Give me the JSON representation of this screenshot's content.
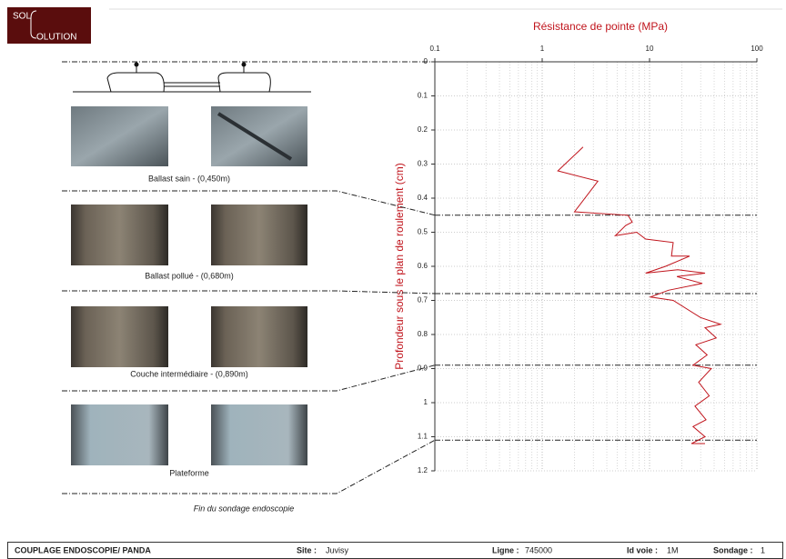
{
  "logo": {
    "line1": "SOL",
    "line2": "OLUTION"
  },
  "layers": [
    {
      "caption": "Ballast sain - (0,450m)"
    },
    {
      "caption": "Ballast pollué - (0,680m)"
    },
    {
      "caption": "Couche intermédiaire - (0,890m)"
    },
    {
      "caption": "Plateforme"
    }
  ],
  "end_note": "Fin du sondage endoscopie",
  "chart_data": {
    "type": "line",
    "title": "Résistance de pointe (MPa)",
    "y_label": "Profondeur sous le plan de roulement (cm)",
    "x_log": true,
    "xlim": [
      0.1,
      100
    ],
    "xticks": [
      0.1,
      1,
      10,
      100
    ],
    "ylim": [
      0,
      1.2
    ],
    "yticks": [
      0,
      0.1,
      0.2,
      0.3,
      0.4,
      0.5,
      0.6,
      0.7,
      0.8,
      0.9,
      1,
      1.1,
      1.2
    ],
    "y_inverted": true,
    "grid": true,
    "color": "#c0141c",
    "layer_depths": [
      0.45,
      0.68,
      0.89,
      1.11
    ],
    "x": [
      2.4,
      1.4,
      3.3,
      2.0,
      6.3,
      6.9,
      6.0,
      4.8,
      7.6,
      9.2,
      16.6,
      16,
      23.6,
      14.1,
      9.2,
      18.3,
      32.9,
      18,
      31,
      15,
      10.2,
      16.6,
      29.8,
      45.9,
      32.9,
      41.8,
      27,
      34.4,
      25.4,
      37.6,
      28.7,
      36,
      26.5,
      33.6,
      25.4,
      32.9,
      24.6,
      32.9
    ],
    "y": [
      0.25,
      0.32,
      0.35,
      0.44,
      0.45,
      0.47,
      0.48,
      0.51,
      0.5,
      0.52,
      0.53,
      0.57,
      0.57,
      0.6,
      0.62,
      0.61,
      0.62,
      0.63,
      0.65,
      0.67,
      0.69,
      0.7,
      0.75,
      0.77,
      0.78,
      0.81,
      0.83,
      0.86,
      0.89,
      0.9,
      0.94,
      0.98,
      1.01,
      1.05,
      1.07,
      1.1,
      1.12,
      1.12
    ]
  },
  "footer": {
    "title": "COUPLAGE ENDOSCOPIE/ PANDA",
    "site_label": "Site :",
    "site": "Juvisy",
    "ligne_label": "Ligne :",
    "ligne": "745000",
    "voie_label": "Id voie :",
    "voie": "1M",
    "sondage_label": "Sondage :",
    "sondage": "1"
  }
}
